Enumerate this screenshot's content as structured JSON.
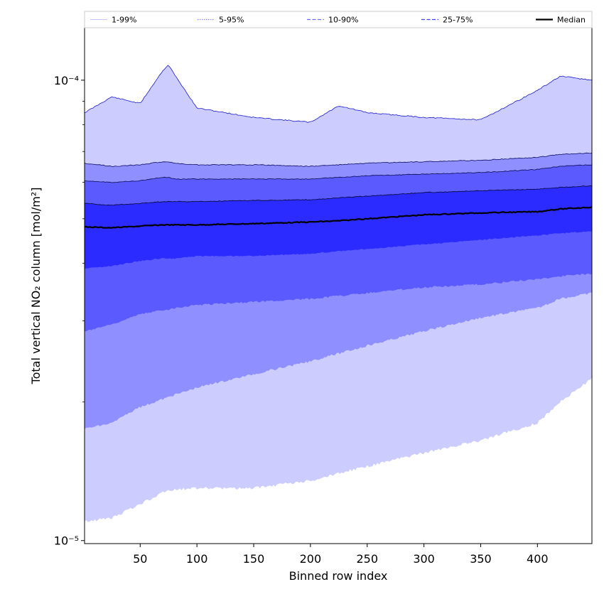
{
  "chart_data": {
    "type": "area",
    "xlabel": "Binned row index",
    "ylabel": "Total vertical NO₂ column [mol/m²]",
    "yscale": "log",
    "xlim": [
      1,
      448
    ],
    "ylim": [
      9.85e-06,
      0.00013
    ],
    "x_ticks": [
      50,
      100,
      150,
      200,
      250,
      300,
      350,
      400
    ],
    "y_ticks": [
      {
        "value": 1e-05,
        "label": "10⁻⁵"
      },
      {
        "value": 0.0001,
        "label": "10⁻⁴"
      }
    ],
    "legend": {
      "placement": "top, above plot, single row"
    },
    "x": [
      1,
      25,
      50,
      70,
      75,
      80,
      100,
      150,
      200,
      225,
      250,
      300,
      350,
      400,
      420,
      448
    ],
    "bands": [
      {
        "name": "1-99%",
        "color": "#ccccff",
        "lower": [
          1.1e-05,
          1.12e-05,
          1.2e-05,
          1.27e-05,
          1.28e-05,
          1.29e-05,
          1.3e-05,
          1.3e-05,
          1.35e-05,
          1.4e-05,
          1.45e-05,
          1.55e-05,
          1.65e-05,
          1.8e-05,
          2e-05,
          2.25e-05
        ],
        "upper": [
          8.5e-05,
          9.2e-05,
          8.9e-05,
          0.000105,
          0.000108,
          0.000103,
          8.7e-05,
          8.3e-05,
          8.1e-05,
          8.8e-05,
          8.5e-05,
          8.3e-05,
          8.2e-05,
          9.5e-05,
          0.000102,
          0.0001
        ]
      },
      {
        "name": "5-95%",
        "color": "#8f8fff",
        "lower": [
          1.75e-05,
          1.8e-05,
          1.95e-05,
          2.03e-05,
          2.05e-05,
          2.07e-05,
          2.15e-05,
          2.3e-05,
          2.45e-05,
          2.55e-05,
          2.65e-05,
          2.85e-05,
          3.05e-05,
          3.2e-05,
          3.35e-05,
          3.45e-05
        ],
        "upper": [
          6.6e-05,
          6.5e-05,
          6.55e-05,
          6.65e-05,
          6.65e-05,
          6.6e-05,
          6.55e-05,
          6.55e-05,
          6.5e-05,
          6.55e-05,
          6.6e-05,
          6.65e-05,
          6.7e-05,
          6.8e-05,
          6.9e-05,
          6.95e-05
        ]
      },
      {
        "name": "10-90%",
        "color": "#5a5aff",
        "lower": [
          2.85e-05,
          2.95e-05,
          3.1e-05,
          3.17e-05,
          3.18e-05,
          3.2e-05,
          3.25e-05,
          3.3e-05,
          3.35e-05,
          3.4e-05,
          3.45e-05,
          3.55e-05,
          3.6e-05,
          3.7e-05,
          3.75e-05,
          3.8e-05
        ]
      },
      {
        "name": "25-75%",
        "color": "#2b2bff",
        "lower": [
          3.9e-05,
          3.95e-05,
          4.05e-05,
          4.1e-05,
          4.1e-05,
          4.1e-05,
          4.15e-05,
          4.15e-05,
          4.2e-05,
          4.25e-05,
          4.3e-05,
          4.4e-05,
          4.5e-05,
          4.6e-05,
          4.65e-05,
          4.7e-05
        ],
        "upper": [
          5.4e-05,
          5.35e-05,
          5.4e-05,
          5.45e-05,
          5.45e-05,
          5.45e-05,
          5.45e-05,
          5.48e-05,
          5.5e-05,
          5.55e-05,
          5.6e-05,
          5.7e-05,
          5.75e-05,
          5.8e-05,
          5.85e-05,
          5.9e-05
        ]
      }
    ],
    "band_10_90_upper": [
      6.05e-05,
      6e-05,
      6.05e-05,
      6.15e-05,
      6.15e-05,
      6.1e-05,
      6.1e-05,
      6.1e-05,
      6.1e-05,
      6.15e-05,
      6.2e-05,
      6.25e-05,
      6.3e-05,
      6.4e-05,
      6.5e-05,
      6.55e-05
    ],
    "series": [
      {
        "name": "Median",
        "color": "#000000",
        "values": [
          4.8e-05,
          4.78e-05,
          4.82e-05,
          4.85e-05,
          4.85e-05,
          4.85e-05,
          4.85e-05,
          4.88e-05,
          4.92e-05,
          4.95e-05,
          5e-05,
          5.1e-05,
          5.15e-05,
          5.18e-05,
          5.25e-05,
          5.3e-05
        ]
      }
    ],
    "legend_entries": [
      {
        "label": "1-99%",
        "color": "#b0b0ff",
        "style": "solid-thin"
      },
      {
        "label": "5-95%",
        "color": "#8a8aff",
        "style": "dotted"
      },
      {
        "label": "10-90%",
        "color": "#6a6aff",
        "style": "dashed"
      },
      {
        "label": "25-75%",
        "color": "#3d3dff",
        "style": "dashed"
      },
      {
        "label": "Median",
        "color": "#000000",
        "style": "solid-thick"
      }
    ]
  }
}
